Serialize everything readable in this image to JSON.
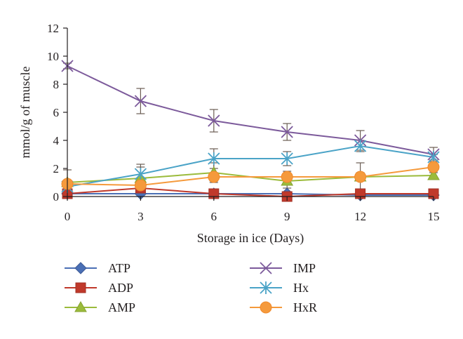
{
  "chart_data": {
    "type": "line",
    "xlabel": "Storage in ice (Days)",
    "ylabel": "mmol/g of muscle",
    "x": [
      0,
      3,
      6,
      9,
      12,
      15
    ],
    "xlim": [
      0,
      15
    ],
    "ylim": [
      0,
      12
    ],
    "x_ticks": [
      "0",
      "3",
      "6",
      "9",
      "12",
      "15"
    ],
    "y_ticks": [
      "0",
      "2",
      "4",
      "6",
      "8",
      "10",
      "12"
    ],
    "grid": false,
    "legend_placement": "bottom",
    "series": [
      {
        "name": "ATP",
        "color": "#4a6fb5",
        "marker": "diamond",
        "values": [
          0.2,
          0.2,
          0.2,
          0.2,
          0.1,
          0.1
        ],
        "errors": [
          0.1,
          0.1,
          0.1,
          0.1,
          0.1,
          0.1
        ]
      },
      {
        "name": "ADP",
        "color": "#c0392b",
        "marker": "square",
        "values": [
          0.2,
          0.6,
          0.2,
          0.0,
          0.2,
          0.2
        ],
        "errors": [
          0.2,
          0.2,
          0.2,
          0.2,
          0.1,
          0.1
        ]
      },
      {
        "name": "AMP",
        "color": "#9bbb3b",
        "marker": "triangle",
        "values": [
          1.0,
          1.3,
          1.7,
          1.1,
          1.4,
          1.5
        ],
        "errors": [
          0.9,
          0.8,
          0.7,
          0.5,
          0.3,
          0.2
        ]
      },
      {
        "name": "IMP",
        "color": "#7c5a9b",
        "marker": "x",
        "values": [
          9.3,
          6.8,
          5.4,
          4.6,
          4.0,
          3.0
        ],
        "errors": [
          0.2,
          0.9,
          0.8,
          0.6,
          0.7,
          0.5
        ]
      },
      {
        "name": "Hx",
        "color": "#4aa3c7",
        "marker": "star",
        "values": [
          0.7,
          1.6,
          2.7,
          2.7,
          3.6,
          2.8
        ],
        "errors": [
          0.2,
          0.7,
          0.7,
          0.5,
          0.4,
          0.2
        ]
      },
      {
        "name": "HxR",
        "color": "#f59a3c",
        "marker": "circle",
        "values": [
          0.9,
          0.8,
          1.4,
          1.4,
          1.4,
          2.1
        ],
        "errors": [
          0.2,
          0.3,
          0.3,
          0.4,
          1.0,
          0.3
        ]
      }
    ]
  }
}
